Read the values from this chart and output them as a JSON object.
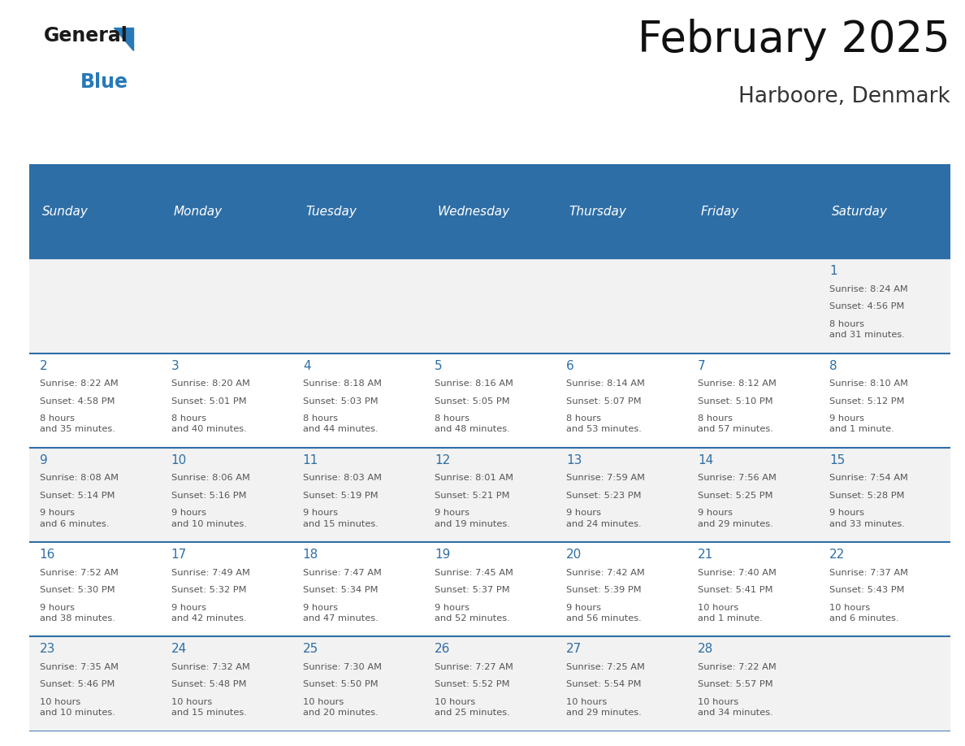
{
  "title": "February 2025",
  "subtitle": "Harboore, Denmark",
  "header_bg": "#2E6EA6",
  "header_text_color": "#FFFFFF",
  "cell_bg_odd": "#F2F2F2",
  "cell_bg_even": "#FFFFFF",
  "text_color": "#555555",
  "day_number_color": "#2E6EA6",
  "border_color": "#2E6EA6",
  "days_of_week": [
    "Sunday",
    "Monday",
    "Tuesday",
    "Wednesday",
    "Thursday",
    "Friday",
    "Saturday"
  ],
  "weeks": [
    [
      {
        "day": null,
        "sunrise": null,
        "sunset": null,
        "daylight": null
      },
      {
        "day": null,
        "sunrise": null,
        "sunset": null,
        "daylight": null
      },
      {
        "day": null,
        "sunrise": null,
        "sunset": null,
        "daylight": null
      },
      {
        "day": null,
        "sunrise": null,
        "sunset": null,
        "daylight": null
      },
      {
        "day": null,
        "sunrise": null,
        "sunset": null,
        "daylight": null
      },
      {
        "day": null,
        "sunrise": null,
        "sunset": null,
        "daylight": null
      },
      {
        "day": 1,
        "sunrise": "8:24 AM",
        "sunset": "4:56 PM",
        "daylight": "8 hours\nand 31 minutes."
      }
    ],
    [
      {
        "day": 2,
        "sunrise": "8:22 AM",
        "sunset": "4:58 PM",
        "daylight": "8 hours\nand 35 minutes."
      },
      {
        "day": 3,
        "sunrise": "8:20 AM",
        "sunset": "5:01 PM",
        "daylight": "8 hours\nand 40 minutes."
      },
      {
        "day": 4,
        "sunrise": "8:18 AM",
        "sunset": "5:03 PM",
        "daylight": "8 hours\nand 44 minutes."
      },
      {
        "day": 5,
        "sunrise": "8:16 AM",
        "sunset": "5:05 PM",
        "daylight": "8 hours\nand 48 minutes."
      },
      {
        "day": 6,
        "sunrise": "8:14 AM",
        "sunset": "5:07 PM",
        "daylight": "8 hours\nand 53 minutes."
      },
      {
        "day": 7,
        "sunrise": "8:12 AM",
        "sunset": "5:10 PM",
        "daylight": "8 hours\nand 57 minutes."
      },
      {
        "day": 8,
        "sunrise": "8:10 AM",
        "sunset": "5:12 PM",
        "daylight": "9 hours\nand 1 minute."
      }
    ],
    [
      {
        "day": 9,
        "sunrise": "8:08 AM",
        "sunset": "5:14 PM",
        "daylight": "9 hours\nand 6 minutes."
      },
      {
        "day": 10,
        "sunrise": "8:06 AM",
        "sunset": "5:16 PM",
        "daylight": "9 hours\nand 10 minutes."
      },
      {
        "day": 11,
        "sunrise": "8:03 AM",
        "sunset": "5:19 PM",
        "daylight": "9 hours\nand 15 minutes."
      },
      {
        "day": 12,
        "sunrise": "8:01 AM",
        "sunset": "5:21 PM",
        "daylight": "9 hours\nand 19 minutes."
      },
      {
        "day": 13,
        "sunrise": "7:59 AM",
        "sunset": "5:23 PM",
        "daylight": "9 hours\nand 24 minutes."
      },
      {
        "day": 14,
        "sunrise": "7:56 AM",
        "sunset": "5:25 PM",
        "daylight": "9 hours\nand 29 minutes."
      },
      {
        "day": 15,
        "sunrise": "7:54 AM",
        "sunset": "5:28 PM",
        "daylight": "9 hours\nand 33 minutes."
      }
    ],
    [
      {
        "day": 16,
        "sunrise": "7:52 AM",
        "sunset": "5:30 PM",
        "daylight": "9 hours\nand 38 minutes."
      },
      {
        "day": 17,
        "sunrise": "7:49 AM",
        "sunset": "5:32 PM",
        "daylight": "9 hours\nand 42 minutes."
      },
      {
        "day": 18,
        "sunrise": "7:47 AM",
        "sunset": "5:34 PM",
        "daylight": "9 hours\nand 47 minutes."
      },
      {
        "day": 19,
        "sunrise": "7:45 AM",
        "sunset": "5:37 PM",
        "daylight": "9 hours\nand 52 minutes."
      },
      {
        "day": 20,
        "sunrise": "7:42 AM",
        "sunset": "5:39 PM",
        "daylight": "9 hours\nand 56 minutes."
      },
      {
        "day": 21,
        "sunrise": "7:40 AM",
        "sunset": "5:41 PM",
        "daylight": "10 hours\nand 1 minute."
      },
      {
        "day": 22,
        "sunrise": "7:37 AM",
        "sunset": "5:43 PM",
        "daylight": "10 hours\nand 6 minutes."
      }
    ],
    [
      {
        "day": 23,
        "sunrise": "7:35 AM",
        "sunset": "5:46 PM",
        "daylight": "10 hours\nand 10 minutes."
      },
      {
        "day": 24,
        "sunrise": "7:32 AM",
        "sunset": "5:48 PM",
        "daylight": "10 hours\nand 15 minutes."
      },
      {
        "day": 25,
        "sunrise": "7:30 AM",
        "sunset": "5:50 PM",
        "daylight": "10 hours\nand 20 minutes."
      },
      {
        "day": 26,
        "sunrise": "7:27 AM",
        "sunset": "5:52 PM",
        "daylight": "10 hours\nand 25 minutes."
      },
      {
        "day": 27,
        "sunrise": "7:25 AM",
        "sunset": "5:54 PM",
        "daylight": "10 hours\nand 29 minutes."
      },
      {
        "day": 28,
        "sunrise": "7:22 AM",
        "sunset": "5:57 PM",
        "daylight": "10 hours\nand 34 minutes."
      },
      {
        "day": null,
        "sunrise": null,
        "sunset": null,
        "daylight": null
      }
    ]
  ]
}
